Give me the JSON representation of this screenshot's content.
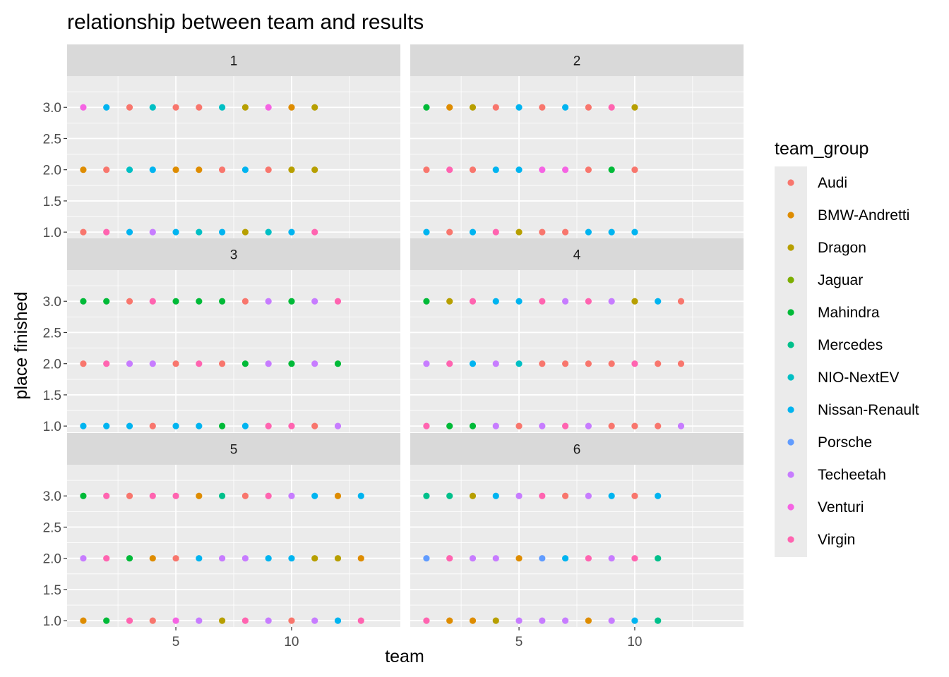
{
  "chart_data": {
    "type": "scatter",
    "title": "relationship between team and results",
    "xlabel": "team",
    "ylabel": "place finished",
    "x_ticks": [
      5,
      10
    ],
    "y_ticks": [
      1.0,
      1.5,
      2.0,
      2.5,
      3.0
    ],
    "y_tick_labels": [
      "1.0",
      "1.5",
      "2.0",
      "2.5",
      "3.0"
    ],
    "xlim": [
      0.3,
      14.7
    ],
    "ylim": [
      0.9,
      3.5
    ],
    "grid": true,
    "legend": {
      "title": "team_group",
      "position": "right",
      "entries": [
        {
          "name": "Audi",
          "color": "#F8766D"
        },
        {
          "name": "BMW-Andretti",
          "color": "#DE8C00"
        },
        {
          "name": "Dragon",
          "color": "#B79F00"
        },
        {
          "name": "Jaguar",
          "color": "#7CAE00"
        },
        {
          "name": "Mahindra",
          "color": "#00BA38"
        },
        {
          "name": "Mercedes",
          "color": "#00C08B"
        },
        {
          "name": "NIO-NextEV",
          "color": "#00BFC4"
        },
        {
          "name": "Nissan-Renault",
          "color": "#00B4F0"
        },
        {
          "name": "Porsche",
          "color": "#619CFF"
        },
        {
          "name": "Techeetah",
          "color": "#C77CFF"
        },
        {
          "name": "Venturi",
          "color": "#F564E3"
        },
        {
          "name": "Virgin",
          "color": "#FF64B0"
        }
      ]
    },
    "panels": [
      {
        "label": "1",
        "points": [
          {
            "y": 3,
            "teams": [
              "Venturi",
              "Nissan-Renault",
              "Audi",
              "NIO-NextEV",
              "Audi",
              "Audi",
              "NIO-NextEV",
              "Dragon",
              "Venturi",
              "BMW-Andretti",
              "Dragon"
            ]
          },
          {
            "y": 2,
            "teams": [
              "BMW-Andretti",
              "Audi",
              "NIO-NextEV",
              "Nissan-Renault",
              "BMW-Andretti",
              "BMW-Andretti",
              "Audi",
              "Nissan-Renault",
              "Audi",
              "Dragon",
              "Dragon"
            ]
          },
          {
            "y": 1,
            "teams": [
              "Audi",
              "Virgin",
              "Nissan-Renault",
              "Techeetah",
              "Nissan-Renault",
              "NIO-NextEV",
              "Nissan-Renault",
              "Dragon",
              "NIO-NextEV",
              "Nissan-Renault",
              "Virgin"
            ]
          }
        ]
      },
      {
        "label": "2",
        "points": [
          {
            "y": 3,
            "teams": [
              "Mahindra",
              "BMW-Andretti",
              "Dragon",
              "Audi",
              "Nissan-Renault",
              "Audi",
              "Nissan-Renault",
              "Audi",
              "Virgin",
              "Dragon"
            ]
          },
          {
            "y": 2,
            "teams": [
              "Audi",
              "Virgin",
              "Audi",
              "Nissan-Renault",
              "Nissan-Renault",
              "Venturi",
              "Venturi",
              "Audi",
              "Mahindra",
              "Audi"
            ]
          },
          {
            "y": 1,
            "teams": [
              "Nissan-Renault",
              "Audi",
              "Nissan-Renault",
              "Virgin",
              "Dragon",
              "Audi",
              "Audi",
              "Nissan-Renault",
              "Nissan-Renault",
              "Nissan-Renault"
            ]
          }
        ]
      },
      {
        "label": "3",
        "points": [
          {
            "y": 3,
            "teams": [
              "Mahindra",
              "Mahindra",
              "Audi",
              "Virgin",
              "Mahindra",
              "Mahindra",
              "Mahindra",
              "Audi",
              "Techeetah",
              "Mahindra",
              "Techeetah",
              "Virgin"
            ]
          },
          {
            "y": 2,
            "teams": [
              "Audi",
              "Virgin",
              "Techeetah",
              "Techeetah",
              "Audi",
              "Virgin",
              "Audi",
              "Mahindra",
              "Techeetah",
              "Mahindra",
              "Techeetah",
              "Mahindra"
            ]
          },
          {
            "y": 1,
            "teams": [
              "Nissan-Renault",
              "Nissan-Renault",
              "Nissan-Renault",
              "Audi",
              "Nissan-Renault",
              "Nissan-Renault",
              "Mahindra",
              "Nissan-Renault",
              "Virgin",
              "Virgin",
              "Audi",
              "Techeetah"
            ]
          }
        ]
      },
      {
        "label": "4",
        "points": [
          {
            "y": 3,
            "teams": [
              "Mahindra",
              "Dragon",
              "Virgin",
              "Nissan-Renault",
              "Nissan-Renault",
              "Virgin",
              "Techeetah",
              "Virgin",
              "Techeetah",
              "Dragon",
              "Nissan-Renault",
              "Audi"
            ]
          },
          {
            "y": 2,
            "teams": [
              "Techeetah",
              "Virgin",
              "Nissan-Renault",
              "Techeetah",
              "NIO-NextEV",
              "Audi",
              "Audi",
              "Audi",
              "Audi",
              "Virgin",
              "Audi",
              "Audi"
            ]
          },
          {
            "y": 1,
            "teams": [
              "Virgin",
              "Mahindra",
              "Mahindra",
              "Techeetah",
              "Audi",
              "Techeetah",
              "Virgin",
              "Techeetah",
              "Audi",
              "Audi",
              "Audi",
              "Techeetah"
            ]
          }
        ]
      },
      {
        "label": "5",
        "points": [
          {
            "y": 3,
            "teams": [
              "Mahindra",
              "Virgin",
              "Audi",
              "Virgin",
              "Virgin",
              "BMW-Andretti",
              "Mercedes",
              "Audi",
              "Virgin",
              "Techeetah",
              "Nissan-Renault",
              "BMW-Andretti",
              "Nissan-Renault"
            ]
          },
          {
            "y": 2,
            "teams": [
              "Techeetah",
              "Virgin",
              "Mahindra",
              "BMW-Andretti",
              "Audi",
              "Nissan-Renault",
              "Techeetah",
              "Techeetah",
              "Nissan-Renault",
              "Nissan-Renault",
              "Dragon",
              "Dragon",
              "BMW-Andretti"
            ]
          },
          {
            "y": 1,
            "teams": [
              "BMW-Andretti",
              "Mahindra",
              "Virgin",
              "Audi",
              "Venturi",
              "Techeetah",
              "Dragon",
              "Virgin",
              "Techeetah",
              "Audi",
              "Techeetah",
              "Nissan-Renault",
              "Virgin"
            ]
          }
        ]
      },
      {
        "label": "6",
        "points": [
          {
            "y": 3,
            "teams": [
              "Mercedes",
              "Mercedes",
              "Dragon",
              "Nissan-Renault",
              "Techeetah",
              "Virgin",
              "Audi",
              "Techeetah",
              "Nissan-Renault",
              "Audi",
              "Nissan-Renault"
            ]
          },
          {
            "y": 2,
            "teams": [
              "Porsche",
              "Virgin",
              "Techeetah",
              "Techeetah",
              "BMW-Andretti",
              "Porsche",
              "Nissan-Renault",
              "Virgin",
              "Techeetah",
              "Virgin",
              "Mercedes"
            ]
          },
          {
            "y": 1,
            "teams": [
              "Virgin",
              "BMW-Andretti",
              "BMW-Andretti",
              "Dragon",
              "Techeetah",
              "Techeetah",
              "Techeetah",
              "BMW-Andretti",
              "Techeetah",
              "Nissan-Renault",
              "Mercedes"
            ]
          }
        ]
      }
    ]
  }
}
